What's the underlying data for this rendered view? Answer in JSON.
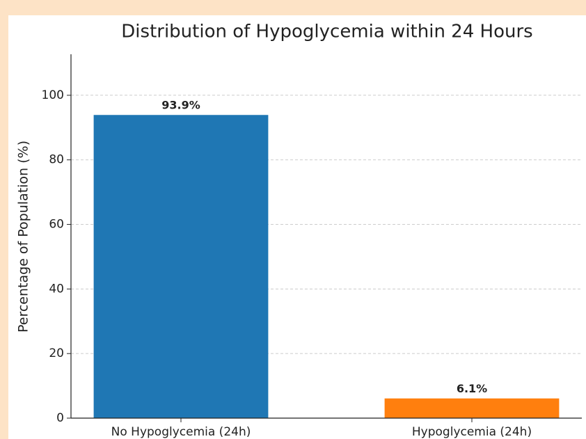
{
  "chart_data": {
    "type": "bar",
    "title": "Distribution of Hypoglycemia within 24 Hours",
    "y_label": "Percentage of Population (%)",
    "categories": [
      "No Hypoglycemia (24h)",
      "Hypoglycemia (24h)"
    ],
    "values": [
      93.9,
      6.1
    ],
    "value_labels": [
      "93.9%",
      "6.1%"
    ],
    "colors": [
      "#1f77b4",
      "#ff7f0e"
    ],
    "ylim": [
      0,
      112.7
    ],
    "yticks": [
      0,
      20,
      40,
      60,
      80,
      100
    ],
    "grid": true
  }
}
